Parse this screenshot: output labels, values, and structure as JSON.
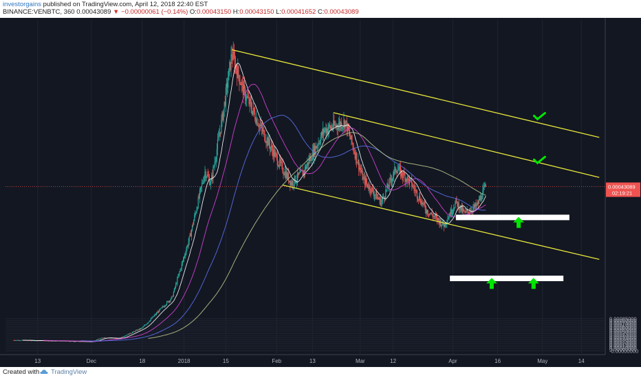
{
  "header": {
    "author": "investorgains",
    "published_text": " published on TradingView.com, April 12, 2018 22:40 EST",
    "symbol": "BINANCE:VENBTC, 360",
    "last": "0.00043089",
    "change": "−0.00000061 (−0.14%)",
    "ohlc_o_label": "O:",
    "ohlc_o": "0.00043150",
    "ohlc_h_label": "H:",
    "ohlc_h": "0.00043150",
    "ohlc_l_label": "L:",
    "ohlc_l": "0.00041652",
    "ohlc_c_label": "C:",
    "ohlc_c": "0.00043089"
  },
  "price_label": {
    "price": "0.00043089",
    "countdown": "02:19:21"
  },
  "footer": {
    "created_with": "Created with",
    "brand": "TradingView"
  },
  "colors": {
    "background": "#131722",
    "grid": "#1f2430",
    "up": "#26a69a",
    "down": "#ef5350",
    "channel": "#e8e83a",
    "level": "#ffffff",
    "arrow": "#00e600",
    "ma_fast": "#ffffff",
    "ma_mid": "#d040d0",
    "ma_slow": "#5a6ee8",
    "ma_200": "#b8c28a"
  },
  "chart_data": {
    "type": "candlestick",
    "ylim": [
      -5e-06,
      9e-05
    ],
    "y_ticks": [
      "0.00085000",
      "0.00080000",
      "0.00075000",
      "0.00070000",
      "0.00065000",
      "0.00060000",
      "0.00055000",
      "0.00050000",
      "0.00045000",
      "0.00040000",
      "0.00035000",
      "0.00030000",
      "0.00025000",
      "0.00020000",
      "0.00015000",
      "0.00010000",
      "0.00005000",
      "-0.00000000"
    ],
    "x_ticks": [
      "13",
      "Dec",
      "18",
      "2018",
      "15",
      "Feb",
      "13",
      "Mar",
      "12",
      "Apr",
      "16",
      "May",
      "14"
    ],
    "price_path": [
      {
        "date": "2017-11-05",
        "price": 2.8e-05
      },
      {
        "date": "2017-11-20",
        "price": 2.6e-05
      },
      {
        "date": "2017-12-01",
        "price": 2.4e-05
      },
      {
        "date": "2017-12-05",
        "price": 3.5e-05
      },
      {
        "date": "2017-12-10",
        "price": 3.2e-05
      },
      {
        "date": "2017-12-18",
        "price": 6e-05
      },
      {
        "date": "2017-12-28",
        "price": 0.00014
      },
      {
        "date": "2018-01-03",
        "price": 0.0003
      },
      {
        "date": "2018-01-08",
        "price": 0.00047
      },
      {
        "date": "2018-01-10",
        "price": 0.00044
      },
      {
        "date": "2018-01-14",
        "price": 0.00062
      },
      {
        "date": "2018-01-17",
        "price": 0.00078
      },
      {
        "date": "2018-01-21",
        "price": 0.00068
      },
      {
        "date": "2018-01-27",
        "price": 0.00058
      },
      {
        "date": "2018-02-02",
        "price": 0.00049
      },
      {
        "date": "2018-02-06",
        "price": 0.00044
      },
      {
        "date": "2018-02-10",
        "price": 0.00047
      },
      {
        "date": "2018-02-17",
        "price": 0.00058
      },
      {
        "date": "2018-02-24",
        "price": 0.0006
      },
      {
        "date": "2018-03-02",
        "price": 0.00045
      },
      {
        "date": "2018-03-08",
        "price": 0.00039
      },
      {
        "date": "2018-03-13",
        "price": 0.00048
      },
      {
        "date": "2018-03-18",
        "price": 0.00044
      },
      {
        "date": "2018-03-23",
        "price": 0.00037
      },
      {
        "date": "2018-03-29",
        "price": 0.00033
      },
      {
        "date": "2018-04-02",
        "price": 0.00039
      },
      {
        "date": "2018-04-05",
        "price": 0.00036
      },
      {
        "date": "2018-04-09",
        "price": 0.00038
      },
      {
        "date": "2018-04-12",
        "price": 0.000431
      }
    ],
    "last_price": 0.00043089,
    "annotations": {
      "channel_lines": [
        {
          "from": {
            "date": "2018-01-17",
            "price": 0.00079
          },
          "to": {
            "date": "2018-05-20",
            "price": 0.00056
          }
        },
        {
          "from": {
            "date": "2018-02-20",
            "price": 0.000625
          },
          "to": {
            "date": "2018-05-20",
            "price": 0.000455
          }
        },
        {
          "from": {
            "date": "2018-02-03",
            "price": 0.000435
          },
          "to": {
            "date": "2018-05-20",
            "price": 0.00024
          }
        }
      ],
      "levels": [
        {
          "from": "2018-04-02",
          "to": "2018-05-10",
          "price": 0.00035
        },
        {
          "from": "2018-03-31",
          "to": "2018-05-08",
          "price": 0.00019
        }
      ],
      "checkmarks": [
        {
          "date": "2018-04-30",
          "price": 0.000615
        },
        {
          "date": "2018-04-30",
          "price": 0.0005
        }
      ],
      "up_arrows": [
        {
          "date": "2018-04-23",
          "price": 0.000335
        },
        {
          "date": "2018-04-14",
          "price": 0.000175
        },
        {
          "date": "2018-04-28",
          "price": 0.000175
        }
      ]
    }
  }
}
